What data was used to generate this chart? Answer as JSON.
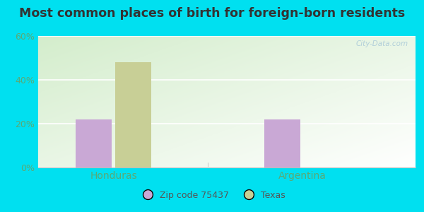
{
  "title": "Most common places of birth for foreign-born residents",
  "categories": [
    "Honduras",
    "Argentina"
  ],
  "zip_values": [
    22.0,
    22.0
  ],
  "texas_values": [
    48.0,
    0.0
  ],
  "zip_color": "#c9a8d5",
  "texas_color": "#c8cf96",
  "zip_label": "Zip code 75437",
  "texas_label": "Texas",
  "ylim": [
    0,
    60
  ],
  "yticks": [
    0,
    20,
    40,
    60
  ],
  "ytick_labels": [
    "0%",
    "20%",
    "40%",
    "60%"
  ],
  "background_outer": "#00e0f0",
  "title_color": "#333333",
  "axis_label_color": "#5aaa75",
  "watermark_text": "City-Data.com",
  "bar_width": 0.38,
  "group_positions": [
    1.0,
    3.0
  ],
  "title_fontsize": 12.5,
  "xlim": [
    0.2,
    4.2
  ]
}
